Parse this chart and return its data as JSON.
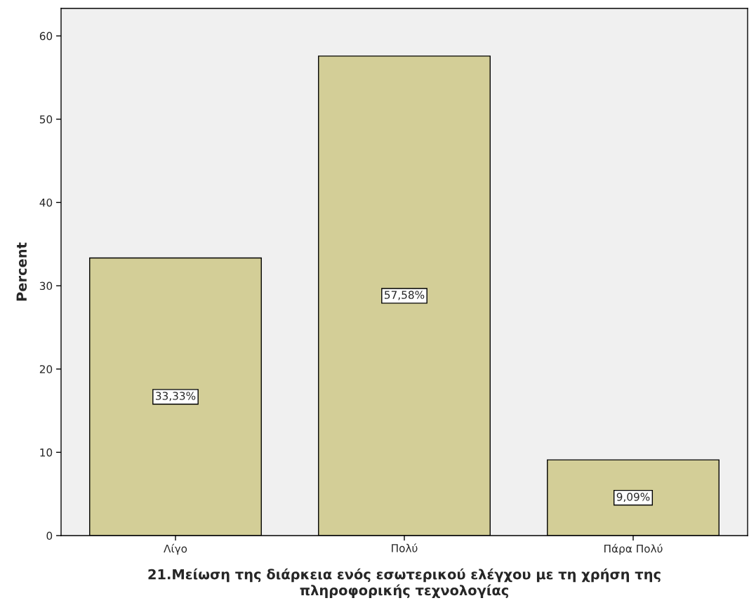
{
  "chart_data": {
    "type": "bar",
    "xlabel": "21.Μείωση της διάρκεια ενός εσωτερικού ελέγχου με τη χρήση της\nπληροφορικής τεχνολογίας",
    "ylabel": "Percent",
    "categories": [
      "Λίγο",
      "Πολύ",
      "Πάρα Πολύ"
    ],
    "values": [
      33.33,
      57.58,
      9.09
    ],
    "value_labels": [
      "33,33%",
      "57,58%",
      "9,09%"
    ],
    "color": "#d3ce97",
    "ylim": [
      0,
      63.3
    ],
    "yticks": [
      0,
      10,
      20,
      30,
      40,
      50,
      60
    ],
    "grid": false
  }
}
